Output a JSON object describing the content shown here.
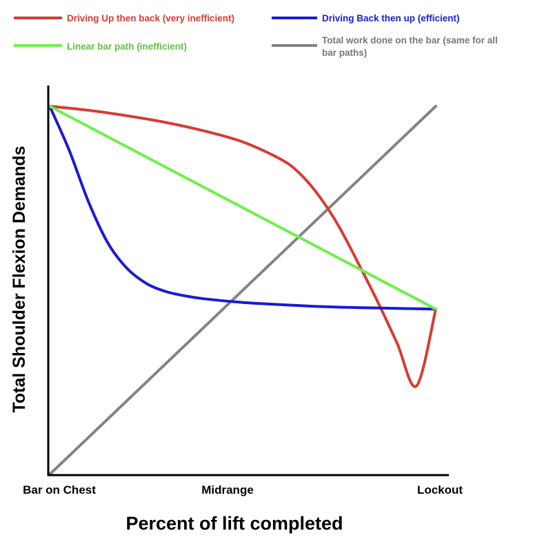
{
  "chart_data": {
    "type": "line",
    "title": "",
    "xlabel": "Percent of lift completed",
    "ylabel": "Total Shoulder Flexion Demands",
    "x_tick_labels": [
      "Bar on Chest",
      "Midrange",
      "Lockout"
    ],
    "x_tick_positions": [
      0,
      50,
      100
    ],
    "xlim": [
      0,
      100
    ],
    "ylim": [
      0,
      100
    ],
    "grid": false,
    "legend_position": "top",
    "series": [
      {
        "name": "Driving Up then back (very inefficient)",
        "color": "#d93a33",
        "x": [
          0,
          10,
          20,
          30,
          40,
          50,
          60,
          65,
          70,
          75,
          80,
          85,
          90,
          95,
          100
        ],
        "y": [
          100,
          98.9,
          97.4,
          95.6,
          93.3,
          90.3,
          85.5,
          81.5,
          75.3,
          67.2,
          57.2,
          46.8,
          35.6,
          24.0,
          44.9
        ]
      },
      {
        "name": "Driving Back then up (efficient)",
        "color": "#1a1ad6",
        "x": [
          0,
          5,
          10,
          15,
          20,
          25,
          30,
          35,
          40,
          50,
          60,
          70,
          80,
          90,
          100
        ],
        "y": [
          100,
          88.2,
          74.2,
          63.0,
          56.0,
          51.9,
          49.7,
          48.5,
          47.7,
          46.7,
          46.1,
          45.6,
          45.3,
          45.1,
          44.9
        ]
      },
      {
        "name": "Linear bar path (inefficient)",
        "color": "#6ef04a",
        "x": [
          0,
          100
        ],
        "y": [
          100,
          44.9
        ]
      },
      {
        "name": "Total work done on the bar (same for all bar paths)",
        "color": "#838383",
        "x": [
          0,
          100
        ],
        "y": [
          0,
          100
        ]
      }
    ]
  }
}
